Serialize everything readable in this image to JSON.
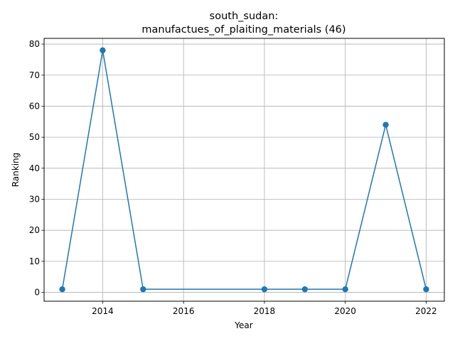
{
  "chart_data": {
    "type": "line",
    "title_lines": [
      "south_sudan:",
      "manufactues_of_plaiting_materials (46)"
    ],
    "xlabel": "Year",
    "ylabel": "Ranking",
    "x": [
      2013,
      2014,
      2015,
      2018,
      2019,
      2020,
      2021,
      2022
    ],
    "y": [
      1,
      78,
      1,
      1,
      1,
      1,
      54,
      1
    ],
    "xlim": [
      2012.55,
      2022.45
    ],
    "ylim": [
      -2.85,
      81.85
    ],
    "xticks": [
      2014,
      2016,
      2018,
      2020,
      2022
    ],
    "yticks": [
      0,
      10,
      20,
      30,
      40,
      50,
      60,
      70,
      80
    ],
    "grid": true,
    "line_color": "#1f77b4",
    "marker": "circle"
  }
}
